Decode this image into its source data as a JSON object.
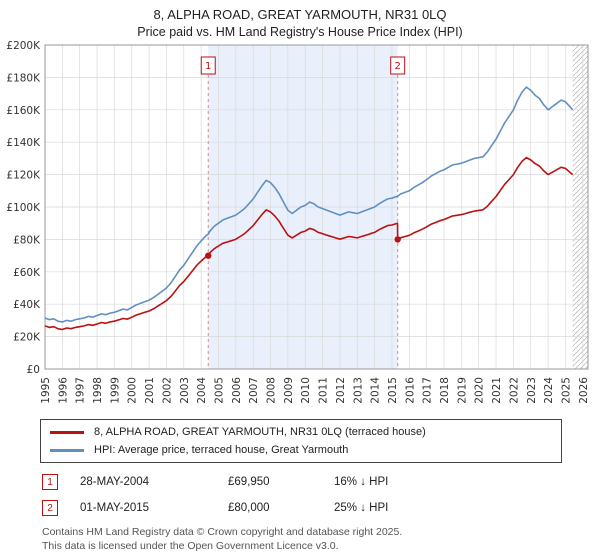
{
  "colors": {
    "red": "#bb1111",
    "blue": "#6090c0",
    "band": "#e9effb",
    "grid": "#d9d9d9",
    "dashed": "#e08888",
    "hatch": "#bbbbbb",
    "spine": "#999999"
  },
  "footer": {
    "line1": "Contains HM Land Registry data © Crown copyright and database right 2025.",
    "line2": "This data is licensed under the Open Government Licence v3.0."
  },
  "chart_data": {
    "type": "line",
    "title": "8, ALPHA ROAD, GREAT YARMOUTH, NR31 0LQ",
    "subtitle": "Price paid vs. HM Land Registry's House Price Index (HPI)",
    "y_unit": "GBP thousands",
    "x_range": [
      1995,
      2026.3
    ],
    "ylim": [
      0,
      200
    ],
    "grid": true,
    "legend_position": "bottom",
    "y_ticks": [
      {
        "v": 0,
        "label": "£0"
      },
      {
        "v": 20,
        "label": "£20K"
      },
      {
        "v": 40,
        "label": "£40K"
      },
      {
        "v": 60,
        "label": "£60K"
      },
      {
        "v": 80,
        "label": "£80K"
      },
      {
        "v": 100,
        "label": "£100K"
      },
      {
        "v": 120,
        "label": "£120K"
      },
      {
        "v": 140,
        "label": "£140K"
      },
      {
        "v": 160,
        "label": "£160K"
      },
      {
        "v": 180,
        "label": "£180K"
      },
      {
        "v": 200,
        "label": "£200K"
      }
    ],
    "x_ticks": [
      1995,
      1996,
      1997,
      1998,
      1999,
      2000,
      2001,
      2002,
      2003,
      2004,
      2005,
      2006,
      2007,
      2008,
      2009,
      2010,
      2011,
      2012,
      2013,
      2014,
      2015,
      2016,
      2017,
      2018,
      2019,
      2020,
      2021,
      2022,
      2023,
      2024,
      2025,
      2026
    ],
    "shaded_region": [
      2004.41,
      2015.33
    ],
    "hatch_region": [
      2025.42,
      2026.3
    ],
    "series": [
      {
        "name": "8, ALPHA ROAD, GREAT YARMOUTH, NR31 0LQ (terraced house)",
        "color": "#bb1111",
        "points": [
          [
            1995.0,
            26.6
          ],
          [
            1995.25,
            25.7
          ],
          [
            1995.5,
            26.1
          ],
          [
            1995.75,
            24.9
          ],
          [
            1996.0,
            24.4
          ],
          [
            1996.25,
            25.3
          ],
          [
            1996.5,
            24.9
          ],
          [
            1996.75,
            25.7
          ],
          [
            1997.0,
            26.1
          ],
          [
            1997.25,
            26.6
          ],
          [
            1997.5,
            27.4
          ],
          [
            1997.75,
            27.0
          ],
          [
            1998.0,
            27.8
          ],
          [
            1998.25,
            28.7
          ],
          [
            1998.5,
            28.2
          ],
          [
            1998.75,
            29.1
          ],
          [
            1999.0,
            29.5
          ],
          [
            1999.25,
            30.3
          ],
          [
            1999.5,
            31.2
          ],
          [
            1999.75,
            30.8
          ],
          [
            2000.0,
            32.0
          ],
          [
            2000.25,
            33.3
          ],
          [
            2000.5,
            34.1
          ],
          [
            2000.75,
            35.0
          ],
          [
            2001.0,
            35.8
          ],
          [
            2001.25,
            37.1
          ],
          [
            2001.5,
            38.8
          ],
          [
            2001.75,
            40.5
          ],
          [
            2002.0,
            42.2
          ],
          [
            2002.25,
            44.7
          ],
          [
            2002.5,
            48.0
          ],
          [
            2002.75,
            51.4
          ],
          [
            2003.0,
            54.0
          ],
          [
            2003.25,
            57.3
          ],
          [
            2003.5,
            60.7
          ],
          [
            2003.75,
            64.1
          ],
          [
            2004.0,
            66.6
          ],
          [
            2004.25,
            69.1
          ],
          [
            2004.41,
            69.95
          ],
          [
            2004.5,
            71.7
          ],
          [
            2004.75,
            74.2
          ],
          [
            2005.0,
            75.9
          ],
          [
            2005.25,
            77.6
          ],
          [
            2005.5,
            78.4
          ],
          [
            2005.75,
            79.2
          ],
          [
            2006.0,
            80.1
          ],
          [
            2006.25,
            81.8
          ],
          [
            2006.5,
            83.5
          ],
          [
            2006.75,
            86.0
          ],
          [
            2007.0,
            88.5
          ],
          [
            2007.25,
            91.9
          ],
          [
            2007.5,
            95.3
          ],
          [
            2007.75,
            98.2
          ],
          [
            2008.0,
            97.0
          ],
          [
            2008.25,
            94.4
          ],
          [
            2008.5,
            91.1
          ],
          [
            2008.75,
            86.8
          ],
          [
            2009.0,
            82.6
          ],
          [
            2009.25,
            80.9
          ],
          [
            2009.5,
            82.6
          ],
          [
            2009.75,
            84.3
          ],
          [
            2010.0,
            85.1
          ],
          [
            2010.25,
            86.8
          ],
          [
            2010.5,
            86.0
          ],
          [
            2010.75,
            84.3
          ],
          [
            2011.0,
            83.5
          ],
          [
            2011.25,
            82.6
          ],
          [
            2011.5,
            81.8
          ],
          [
            2011.75,
            80.9
          ],
          [
            2012.0,
            80.1
          ],
          [
            2012.25,
            80.9
          ],
          [
            2012.5,
            81.8
          ],
          [
            2012.75,
            81.4
          ],
          [
            2013.0,
            80.9
          ],
          [
            2013.25,
            81.8
          ],
          [
            2013.5,
            82.6
          ],
          [
            2013.75,
            83.5
          ],
          [
            2014.0,
            84.3
          ],
          [
            2014.25,
            86.0
          ],
          [
            2014.5,
            87.3
          ],
          [
            2014.75,
            88.5
          ],
          [
            2015.0,
            88.9
          ],
          [
            2015.32,
            90.0
          ],
          [
            2015.33,
            80.0
          ],
          [
            2015.5,
            81.0
          ],
          [
            2015.75,
            81.8
          ],
          [
            2016.0,
            82.5
          ],
          [
            2016.25,
            84.0
          ],
          [
            2016.5,
            85.1
          ],
          [
            2016.75,
            86.3
          ],
          [
            2017.0,
            87.8
          ],
          [
            2017.25,
            89.3
          ],
          [
            2017.5,
            90.4
          ],
          [
            2017.75,
            91.5
          ],
          [
            2018.0,
            92.3
          ],
          [
            2018.25,
            93.4
          ],
          [
            2018.5,
            94.5
          ],
          [
            2018.75,
            94.9
          ],
          [
            2019.0,
            95.3
          ],
          [
            2019.25,
            96.0
          ],
          [
            2019.5,
            96.8
          ],
          [
            2019.75,
            97.5
          ],
          [
            2020.0,
            97.9
          ],
          [
            2020.25,
            98.3
          ],
          [
            2020.5,
            100.5
          ],
          [
            2020.75,
            103.5
          ],
          [
            2021.0,
            106.5
          ],
          [
            2021.25,
            110.3
          ],
          [
            2021.5,
            114.0
          ],
          [
            2021.75,
            117.0
          ],
          [
            2022.0,
            120.0
          ],
          [
            2022.25,
            124.5
          ],
          [
            2022.5,
            128.3
          ],
          [
            2022.75,
            130.5
          ],
          [
            2023.0,
            129.0
          ],
          [
            2023.25,
            126.8
          ],
          [
            2023.5,
            125.3
          ],
          [
            2023.75,
            122.3
          ],
          [
            2024.0,
            120.0
          ],
          [
            2024.25,
            121.5
          ],
          [
            2024.5,
            123.0
          ],
          [
            2024.75,
            124.5
          ],
          [
            2025.0,
            123.8
          ],
          [
            2025.25,
            121.5
          ],
          [
            2025.42,
            120.0
          ]
        ]
      },
      {
        "name": "HPI: Average price, terraced house, Great Yarmouth",
        "color": "#6090c0",
        "points": [
          [
            1995.0,
            31.5
          ],
          [
            1995.25,
            30.5
          ],
          [
            1995.5,
            31.0
          ],
          [
            1995.75,
            29.5
          ],
          [
            1996.0,
            29.0
          ],
          [
            1996.25,
            30.0
          ],
          [
            1996.5,
            29.5
          ],
          [
            1996.75,
            30.5
          ],
          [
            1997.0,
            31.0
          ],
          [
            1997.25,
            31.5
          ],
          [
            1997.5,
            32.5
          ],
          [
            1997.75,
            32.0
          ],
          [
            1998.0,
            33.0
          ],
          [
            1998.25,
            34.0
          ],
          [
            1998.5,
            33.5
          ],
          [
            1998.75,
            34.5
          ],
          [
            1999.0,
            35.0
          ],
          [
            1999.25,
            36.0
          ],
          [
            1999.5,
            37.0
          ],
          [
            1999.75,
            36.5
          ],
          [
            2000.0,
            38.0
          ],
          [
            2000.25,
            39.5
          ],
          [
            2000.5,
            40.5
          ],
          [
            2000.75,
            41.5
          ],
          [
            2001.0,
            42.5
          ],
          [
            2001.25,
            44.0
          ],
          [
            2001.5,
            46.0
          ],
          [
            2001.75,
            48.0
          ],
          [
            2002.0,
            50.0
          ],
          [
            2002.25,
            53.0
          ],
          [
            2002.5,
            57.0
          ],
          [
            2002.75,
            61.0
          ],
          [
            2003.0,
            64.0
          ],
          [
            2003.25,
            68.0
          ],
          [
            2003.5,
            72.0
          ],
          [
            2003.75,
            76.0
          ],
          [
            2004.0,
            79.0
          ],
          [
            2004.25,
            82.0
          ],
          [
            2004.41,
            83.2
          ],
          [
            2004.5,
            85.0
          ],
          [
            2004.75,
            88.0
          ],
          [
            2005.0,
            90.0
          ],
          [
            2005.25,
            92.0
          ],
          [
            2005.5,
            93.0
          ],
          [
            2005.75,
            94.0
          ],
          [
            2006.0,
            95.0
          ],
          [
            2006.25,
            97.0
          ],
          [
            2006.5,
            99.0
          ],
          [
            2006.75,
            102.0
          ],
          [
            2007.0,
            105.0
          ],
          [
            2007.25,
            109.0
          ],
          [
            2007.5,
            113.0
          ],
          [
            2007.75,
            116.5
          ],
          [
            2008.0,
            115.0
          ],
          [
            2008.25,
            112.0
          ],
          [
            2008.5,
            108.0
          ],
          [
            2008.75,
            103.0
          ],
          [
            2009.0,
            98.0
          ],
          [
            2009.25,
            96.0
          ],
          [
            2009.5,
            98.0
          ],
          [
            2009.75,
            100.0
          ],
          [
            2010.0,
            101.0
          ],
          [
            2010.25,
            103.0
          ],
          [
            2010.5,
            102.0
          ],
          [
            2010.75,
            100.0
          ],
          [
            2011.0,
            99.0
          ],
          [
            2011.25,
            98.0
          ],
          [
            2011.5,
            97.0
          ],
          [
            2011.75,
            96.0
          ],
          [
            2012.0,
            95.0
          ],
          [
            2012.25,
            96.0
          ],
          [
            2012.5,
            97.0
          ],
          [
            2012.75,
            96.5
          ],
          [
            2013.0,
            96.0
          ],
          [
            2013.25,
            97.0
          ],
          [
            2013.5,
            98.0
          ],
          [
            2013.75,
            99.0
          ],
          [
            2014.0,
            100.0
          ],
          [
            2014.25,
            102.0
          ],
          [
            2014.5,
            103.5
          ],
          [
            2014.75,
            105.0
          ],
          [
            2015.0,
            105.5
          ],
          [
            2015.33,
            106.7
          ],
          [
            2015.5,
            108.0
          ],
          [
            2015.75,
            109.0
          ],
          [
            2016.0,
            110.0
          ],
          [
            2016.25,
            112.0
          ],
          [
            2016.5,
            113.5
          ],
          [
            2016.75,
            115.0
          ],
          [
            2017.0,
            117.0
          ],
          [
            2017.25,
            119.0
          ],
          [
            2017.5,
            120.5
          ],
          [
            2017.75,
            122.0
          ],
          [
            2018.0,
            123.0
          ],
          [
            2018.25,
            124.5
          ],
          [
            2018.5,
            126.0
          ],
          [
            2018.75,
            126.5
          ],
          [
            2019.0,
            127.0
          ],
          [
            2019.25,
            128.0
          ],
          [
            2019.5,
            129.0
          ],
          [
            2019.75,
            130.0
          ],
          [
            2020.0,
            130.5
          ],
          [
            2020.25,
            131.0
          ],
          [
            2020.5,
            134.0
          ],
          [
            2020.75,
            138.0
          ],
          [
            2021.0,
            142.0
          ],
          [
            2021.25,
            147.0
          ],
          [
            2021.5,
            152.0
          ],
          [
            2021.75,
            156.0
          ],
          [
            2022.0,
            160.0
          ],
          [
            2022.25,
            166.0
          ],
          [
            2022.5,
            171.0
          ],
          [
            2022.75,
            174.0
          ],
          [
            2023.0,
            172.0
          ],
          [
            2023.25,
            169.0
          ],
          [
            2023.5,
            167.0
          ],
          [
            2023.75,
            163.0
          ],
          [
            2024.0,
            160.0
          ],
          [
            2024.25,
            162.0
          ],
          [
            2024.5,
            164.0
          ],
          [
            2024.75,
            166.0
          ],
          [
            2025.0,
            165.0
          ],
          [
            2025.25,
            162.0
          ],
          [
            2025.42,
            160.0
          ]
        ]
      }
    ],
    "sales": [
      {
        "label": "1",
        "x": 2004.41,
        "y": 69.95,
        "date": "28-MAY-2004",
        "price": "£69,950",
        "hpi_diff": "16% ↓ HPI"
      },
      {
        "label": "2",
        "x": 2015.33,
        "y": 80.0,
        "date": "01-MAY-2015",
        "price": "£80,000",
        "hpi_diff": "25% ↓ HPI"
      }
    ]
  }
}
